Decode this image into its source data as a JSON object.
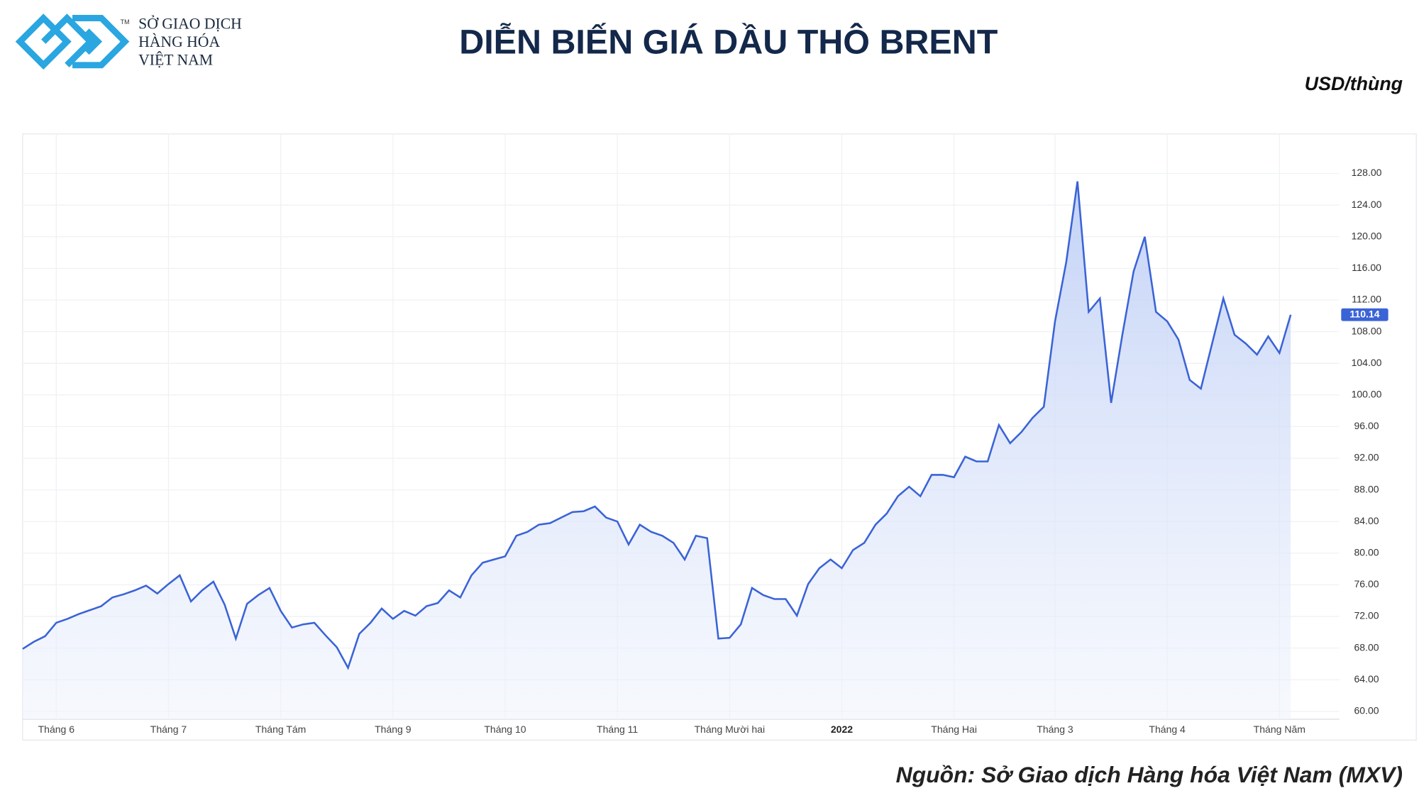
{
  "header": {
    "logo_tm": "TM",
    "logo_lines": [
      "SỞ GIAO DỊCH",
      "HÀNG HÓA",
      "VIỆT NAM"
    ]
  },
  "chart_data": {
    "type": "area",
    "title": "DIỄN BIẾN GIÁ DẦU THÔ BRENT",
    "unit": "USD/thùng",
    "source": "Nguồn: Sở Giao dịch Hàng hóa Việt Nam (MXV)",
    "categories": [
      null,
      null,
      null,
      "Tháng 6",
      null,
      null,
      null,
      null,
      null,
      null,
      null,
      null,
      null,
      "Tháng 7",
      null,
      null,
      null,
      null,
      null,
      null,
      null,
      null,
      null,
      "Tháng Tám",
      null,
      null,
      null,
      null,
      null,
      null,
      null,
      null,
      null,
      "Tháng 9",
      null,
      null,
      null,
      null,
      null,
      null,
      null,
      null,
      null,
      "Tháng 10",
      null,
      null,
      null,
      null,
      null,
      null,
      null,
      null,
      null,
      "Tháng 11",
      null,
      null,
      null,
      null,
      null,
      null,
      null,
      null,
      null,
      "Tháng Mười hai",
      null,
      null,
      null,
      null,
      null,
      null,
      null,
      null,
      null,
      "2022",
      null,
      null,
      null,
      null,
      null,
      null,
      null,
      null,
      null,
      "Tháng Hai",
      null,
      null,
      null,
      null,
      null,
      null,
      null,
      null,
      "Tháng 3",
      null,
      null,
      null,
      null,
      null,
      null,
      null,
      null,
      null,
      "Tháng 4",
      null,
      null,
      null,
      null,
      null,
      null,
      null,
      null,
      null,
      "Tháng Năm",
      null
    ],
    "series": [
      {
        "color": "#3a63d6",
        "values": [
          67.9,
          68.8,
          69.5,
          71.2,
          71.7,
          72.3,
          72.8,
          73.3,
          74.4,
          74.8,
          75.3,
          75.9,
          74.9,
          76.1,
          77.2,
          73.9,
          75.3,
          76.4,
          73.5,
          69.2,
          73.6,
          74.7,
          75.6,
          72.7,
          70.6,
          71.0,
          71.2,
          69.6,
          68.1,
          65.5,
          69.8,
          71.2,
          73.0,
          71.7,
          72.7,
          72.1,
          73.3,
          73.7,
          75.3,
          74.4,
          77.2,
          78.8,
          79.2,
          79.6,
          82.2,
          82.7,
          83.6,
          83.8,
          84.5,
          85.2,
          85.3,
          85.9,
          84.5,
          84.0,
          81.1,
          83.6,
          82.7,
          82.2,
          81.3,
          79.2,
          82.2,
          81.9,
          69.2,
          69.3,
          71.0,
          75.6,
          74.7,
          74.2,
          74.2,
          72.1,
          76.1,
          78.1,
          79.2,
          78.1,
          80.4,
          81.3,
          83.6,
          85.0,
          87.2,
          88.4,
          87.2,
          89.9,
          89.9,
          89.6,
          92.2,
          91.6,
          91.6,
          96.2,
          93.9,
          95.3,
          97.1,
          98.5,
          109.3,
          116.8,
          127,
          110.5,
          112.2,
          99.0,
          107.6,
          115.6,
          120.0,
          110.5,
          109.3,
          107.0,
          101.9,
          100.8,
          106.5,
          112.2,
          107.6,
          106.5,
          105.1,
          107.4,
          105.3,
          110.14
        ]
      }
    ],
    "ylim": [
      59,
      133
    ],
    "yticks": [
      {
        "value": 60,
        "label": "60.00"
      },
      {
        "value": 64,
        "label": "64.00"
      },
      {
        "value": 68,
        "label": "68.00"
      },
      {
        "value": 72,
        "label": "72.00"
      },
      {
        "value": 76,
        "label": "76.00"
      },
      {
        "value": 80,
        "label": "80.00"
      },
      {
        "value": 84,
        "label": "84.00"
      },
      {
        "value": 88,
        "label": "88.00"
      },
      {
        "value": 92,
        "label": "92.00"
      },
      {
        "value": 96,
        "label": "96.00"
      },
      {
        "value": 100,
        "label": "100.00"
      },
      {
        "value": 104,
        "label": "104.00"
      },
      {
        "value": 108,
        "label": "108.00"
      },
      {
        "value": 112,
        "label": "112.00"
      },
      {
        "value": 116,
        "label": "116.00"
      },
      {
        "value": 120,
        "label": "120.00"
      },
      {
        "value": 124,
        "label": "124.00"
      },
      {
        "value": 128,
        "label": "128.00"
      }
    ],
    "grid": true
  }
}
